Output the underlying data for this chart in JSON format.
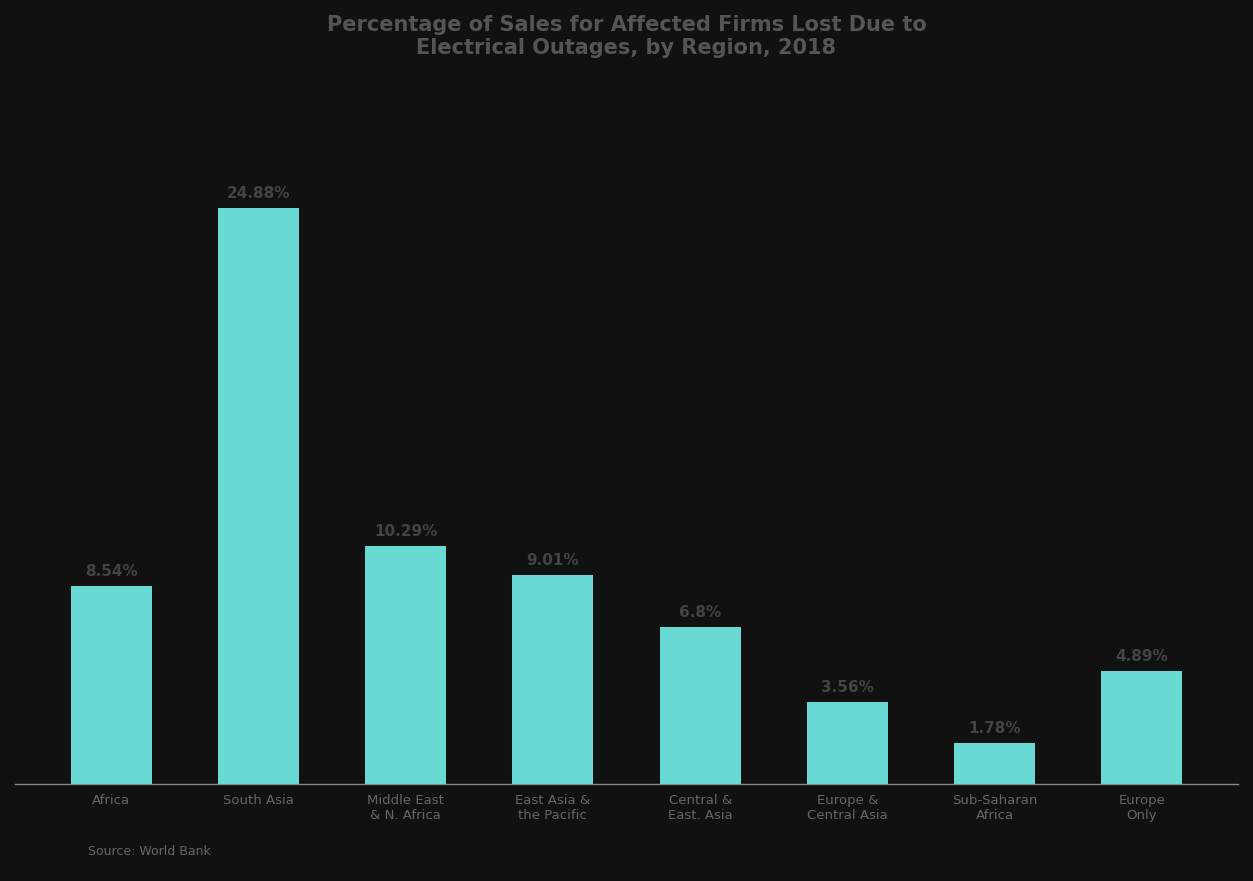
{
  "title_line1": "Percentage of Sales for Affected Firms Lost Due to",
  "title_line2": "Electrical Outages, by Region, 2018",
  "categories": [
    "Africa",
    "South Asia",
    "Middle East\n& N. Africa",
    "East Asia &\nthe Pacific",
    "Central &\nEast. Asia",
    "Europe &\nCentral Asia",
    "Sub-Saharan\nAfrica",
    "Europe\nOnly"
  ],
  "values": [
    8.54,
    24.88,
    10.29,
    9.01,
    6.8,
    3.56,
    1.78,
    4.89
  ],
  "bar_color": "#68D9D3",
  "figure_bg": "#111111",
  "axes_bg": "#111111",
  "title_color": "#555555",
  "label_color": "#444444",
  "tick_label_color": "#666666",
  "source_text": "Source: World Bank",
  "value_labels": [
    "8.54%",
    "24.88%",
    "10.29%",
    "9.01%",
    "6.8%",
    "3.56%",
    "1.78%",
    "4.89%"
  ],
  "ylim": [
    0,
    30
  ],
  "bar_width": 0.55
}
